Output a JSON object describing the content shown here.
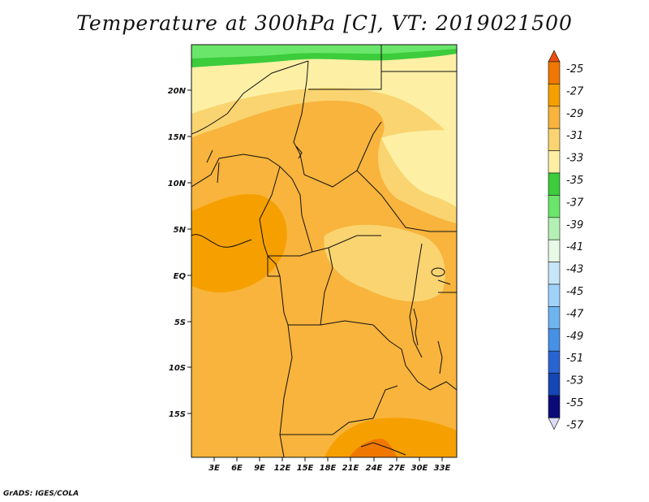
{
  "title": "Temperature at 300hPa [C], VT: 2019021500",
  "credit": "GrADS: IGES/COLA",
  "map": {
    "lat_labels": [
      "20N",
      "15N",
      "10N",
      "5N",
      "EQ",
      "5S",
      "10S",
      "15S"
    ],
    "lon_labels": [
      "3E",
      "6E",
      "9E",
      "12E",
      "15E",
      "18E",
      "21E",
      "24E",
      "27E",
      "30E",
      "33E"
    ]
  },
  "colorbar": {
    "levels": [
      "-25",
      "-27",
      "-29",
      "-31",
      "-33",
      "-35",
      "-37",
      "-39",
      "-41",
      "-43",
      "-45",
      "-47",
      "-49",
      "-51",
      "-53",
      "-55",
      "-57"
    ],
    "colors": [
      "#e8500f",
      "#f07800",
      "#f5a000",
      "#f8b43c",
      "#fad470",
      "#fdf0a5",
      "#3ccc3c",
      "#6ae66a",
      "#b4f0b4",
      "#e6fae6",
      "#c8e6fa",
      "#a0d2fa",
      "#6eb4f0",
      "#4690e6",
      "#2864d2",
      "#1446b4",
      "#0a0a78"
    ]
  }
}
